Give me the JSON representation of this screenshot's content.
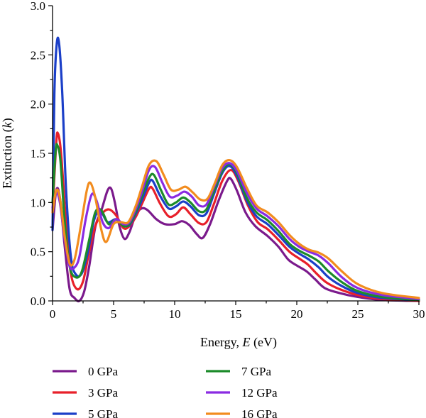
{
  "chart_data": {
    "type": "line",
    "xlabel_prefix": "Energy, ",
    "xlabel_var": "E",
    "xlabel_suffix": " (eV)",
    "ylabel_prefix": "Extinction (",
    "ylabel_var": "k",
    "ylabel_suffix": ")",
    "xlim": [
      0,
      30
    ],
    "ylim": [
      0,
      3.0
    ],
    "xticks": [
      0,
      5,
      10,
      15,
      20,
      25,
      30
    ],
    "xtick_labels": [
      "0",
      "5",
      "10",
      "15",
      "20",
      "25",
      "30"
    ],
    "yticks": [
      0,
      0.5,
      1.0,
      1.5,
      2.0,
      2.5,
      3.0
    ],
    "ytick_labels": [
      "0.0",
      "0.5",
      "1.0",
      "1.5",
      "2.0",
      "2.5",
      "3.0"
    ],
    "grid": false,
    "legend_position": "bottom",
    "series": [
      {
        "name": "0 GPa",
        "color": "#7B1A8C",
        "points": [
          [
            0,
            0.72
          ],
          [
            0.3,
            1.12
          ],
          [
            0.6,
            1.05
          ],
          [
            1.0,
            0.55
          ],
          [
            1.4,
            0.12
          ],
          [
            1.8,
            0.03
          ],
          [
            2.2,
            0.0
          ],
          [
            2.6,
            0.1
          ],
          [
            3.0,
            0.35
          ],
          [
            3.5,
            0.75
          ],
          [
            4.0,
            0.92
          ],
          [
            4.5,
            1.12
          ],
          [
            4.8,
            1.14
          ],
          [
            5.1,
            1.0
          ],
          [
            5.5,
            0.75
          ],
          [
            5.9,
            0.63
          ],
          [
            6.3,
            0.7
          ],
          [
            6.8,
            0.87
          ],
          [
            7.3,
            0.94
          ],
          [
            7.8,
            0.92
          ],
          [
            8.5,
            0.83
          ],
          [
            9.2,
            0.78
          ],
          [
            10.0,
            0.78
          ],
          [
            10.6,
            0.81
          ],
          [
            11.2,
            0.77
          ],
          [
            11.8,
            0.68
          ],
          [
            12.3,
            0.64
          ],
          [
            12.9,
            0.78
          ],
          [
            13.6,
            1.02
          ],
          [
            14.3,
            1.22
          ],
          [
            14.6,
            1.24
          ],
          [
            15.1,
            1.12
          ],
          [
            15.8,
            0.9
          ],
          [
            16.6,
            0.76
          ],
          [
            17.6,
            0.66
          ],
          [
            18.5,
            0.55
          ],
          [
            19.3,
            0.42
          ],
          [
            20.0,
            0.36
          ],
          [
            20.8,
            0.3
          ],
          [
            21.5,
            0.22
          ],
          [
            22.3,
            0.13
          ],
          [
            23.5,
            0.08
          ],
          [
            25.0,
            0.04
          ],
          [
            27.0,
            0.01
          ],
          [
            30.0,
            0.0
          ]
        ]
      },
      {
        "name": "3 GPa",
        "color": "#E8202A",
        "points": [
          [
            0,
            0.9
          ],
          [
            0.3,
            1.6
          ],
          [
            0.45,
            1.7
          ],
          [
            0.7,
            1.5
          ],
          [
            1.1,
            0.8
          ],
          [
            1.5,
            0.28
          ],
          [
            2.0,
            0.12
          ],
          [
            2.5,
            0.2
          ],
          [
            3.0,
            0.5
          ],
          [
            3.5,
            0.76
          ],
          [
            4.0,
            0.88
          ],
          [
            4.6,
            0.93
          ],
          [
            5.2,
            0.87
          ],
          [
            5.8,
            0.74
          ],
          [
            6.3,
            0.76
          ],
          [
            6.8,
            0.85
          ],
          [
            7.3,
            0.98
          ],
          [
            7.9,
            1.14
          ],
          [
            8.2,
            1.14
          ],
          [
            8.8,
            0.99
          ],
          [
            9.5,
            0.86
          ],
          [
            10.1,
            0.88
          ],
          [
            10.7,
            0.95
          ],
          [
            11.3,
            0.88
          ],
          [
            12.0,
            0.79
          ],
          [
            12.6,
            0.8
          ],
          [
            13.2,
            0.98
          ],
          [
            13.9,
            1.22
          ],
          [
            14.6,
            1.33
          ],
          [
            15.2,
            1.22
          ],
          [
            16.0,
            0.97
          ],
          [
            16.8,
            0.8
          ],
          [
            17.6,
            0.73
          ],
          [
            18.5,
            0.62
          ],
          [
            19.4,
            0.5
          ],
          [
            20.2,
            0.43
          ],
          [
            20.9,
            0.37
          ],
          [
            21.6,
            0.28
          ],
          [
            22.4,
            0.19
          ],
          [
            23.5,
            0.12
          ],
          [
            25.0,
            0.06
          ],
          [
            27.0,
            0.02
          ],
          [
            30.0,
            0.0
          ]
        ]
      },
      {
        "name": "5 GPa",
        "color": "#1B3FC8",
        "points": [
          [
            0,
            0.72
          ],
          [
            0.15,
            2.1
          ],
          [
            0.35,
            2.62
          ],
          [
            0.55,
            2.6
          ],
          [
            0.8,
            2.1
          ],
          [
            1.1,
            1.15
          ],
          [
            1.5,
            0.45
          ],
          [
            1.9,
            0.27
          ],
          [
            2.4,
            0.28
          ],
          [
            2.9,
            0.5
          ],
          [
            3.4,
            0.82
          ],
          [
            3.9,
            0.92
          ],
          [
            4.5,
            0.8
          ],
          [
            5.2,
            0.83
          ],
          [
            5.8,
            0.77
          ],
          [
            6.3,
            0.77
          ],
          [
            6.8,
            0.88
          ],
          [
            7.3,
            1.02
          ],
          [
            7.9,
            1.2
          ],
          [
            8.2,
            1.22
          ],
          [
            8.8,
            1.07
          ],
          [
            9.5,
            0.94
          ],
          [
            10.1,
            0.96
          ],
          [
            10.7,
            1.01
          ],
          [
            11.3,
            0.96
          ],
          [
            12.0,
            0.87
          ],
          [
            12.6,
            0.89
          ],
          [
            13.2,
            1.08
          ],
          [
            13.9,
            1.3
          ],
          [
            14.5,
            1.37
          ],
          [
            15.1,
            1.27
          ],
          [
            15.9,
            1.02
          ],
          [
            16.7,
            0.86
          ],
          [
            17.6,
            0.78
          ],
          [
            18.5,
            0.67
          ],
          [
            19.4,
            0.55
          ],
          [
            20.2,
            0.48
          ],
          [
            21.0,
            0.42
          ],
          [
            21.8,
            0.34
          ],
          [
            22.6,
            0.24
          ],
          [
            23.7,
            0.15
          ],
          [
            25.0,
            0.08
          ],
          [
            27.0,
            0.03
          ],
          [
            30.0,
            0.01
          ]
        ]
      },
      {
        "name": "7 GPa",
        "color": "#1C8B2A",
        "points": [
          [
            0,
            1.0
          ],
          [
            0.25,
            1.52
          ],
          [
            0.4,
            1.58
          ],
          [
            0.65,
            1.42
          ],
          [
            1.0,
            0.8
          ],
          [
            1.4,
            0.35
          ],
          [
            1.9,
            0.24
          ],
          [
            2.4,
            0.3
          ],
          [
            3.0,
            0.62
          ],
          [
            3.5,
            0.9
          ],
          [
            4.0,
            0.92
          ],
          [
            4.6,
            0.78
          ],
          [
            5.2,
            0.83
          ],
          [
            5.8,
            0.76
          ],
          [
            6.3,
            0.78
          ],
          [
            6.8,
            0.9
          ],
          [
            7.3,
            1.06
          ],
          [
            7.9,
            1.25
          ],
          [
            8.3,
            1.28
          ],
          [
            8.9,
            1.12
          ],
          [
            9.5,
            0.98
          ],
          [
            10.1,
            1.0
          ],
          [
            10.7,
            1.05
          ],
          [
            11.3,
            1.0
          ],
          [
            12.0,
            0.91
          ],
          [
            12.6,
            0.93
          ],
          [
            13.2,
            1.11
          ],
          [
            13.9,
            1.32
          ],
          [
            14.5,
            1.39
          ],
          [
            15.1,
            1.3
          ],
          [
            15.9,
            1.05
          ],
          [
            16.7,
            0.9
          ],
          [
            17.6,
            0.82
          ],
          [
            18.5,
            0.71
          ],
          [
            19.4,
            0.58
          ],
          [
            20.2,
            0.51
          ],
          [
            21.0,
            0.46
          ],
          [
            21.8,
            0.4
          ],
          [
            22.6,
            0.3
          ],
          [
            23.7,
            0.19
          ],
          [
            25.0,
            0.1
          ],
          [
            27.0,
            0.04
          ],
          [
            30.0,
            0.01
          ]
        ]
      },
      {
        "name": "12 GPa",
        "color": "#8A2BE2",
        "points": [
          [
            0,
            0.95
          ],
          [
            0.3,
            1.1
          ],
          [
            0.6,
            1.0
          ],
          [
            1.0,
            0.62
          ],
          [
            1.4,
            0.35
          ],
          [
            1.8,
            0.34
          ],
          [
            2.2,
            0.45
          ],
          [
            2.7,
            0.82
          ],
          [
            3.2,
            1.08
          ],
          [
            3.6,
            1.02
          ],
          [
            4.1,
            0.8
          ],
          [
            4.6,
            0.74
          ],
          [
            5.2,
            0.83
          ],
          [
            5.8,
            0.78
          ],
          [
            6.3,
            0.8
          ],
          [
            6.8,
            0.93
          ],
          [
            7.3,
            1.1
          ],
          [
            7.9,
            1.33
          ],
          [
            8.4,
            1.36
          ],
          [
            9.0,
            1.2
          ],
          [
            9.6,
            1.06
          ],
          [
            10.2,
            1.07
          ],
          [
            10.8,
            1.11
          ],
          [
            11.4,
            1.06
          ],
          [
            12.0,
            0.97
          ],
          [
            12.6,
            0.98
          ],
          [
            13.2,
            1.15
          ],
          [
            13.9,
            1.35
          ],
          [
            14.5,
            1.4
          ],
          [
            15.1,
            1.32
          ],
          [
            15.9,
            1.1
          ],
          [
            16.7,
            0.94
          ],
          [
            17.6,
            0.86
          ],
          [
            18.5,
            0.76
          ],
          [
            19.4,
            0.63
          ],
          [
            20.2,
            0.55
          ],
          [
            21.0,
            0.5
          ],
          [
            21.8,
            0.46
          ],
          [
            22.6,
            0.38
          ],
          [
            23.7,
            0.24
          ],
          [
            25.0,
            0.13
          ],
          [
            27.0,
            0.06
          ],
          [
            30.0,
            0.02
          ]
        ]
      },
      {
        "name": "16 GPa",
        "color": "#F28C1E",
        "points": [
          [
            0,
            0.9
          ],
          [
            0.3,
            1.12
          ],
          [
            0.6,
            1.05
          ],
          [
            1.0,
            0.65
          ],
          [
            1.4,
            0.38
          ],
          [
            1.8,
            0.42
          ],
          [
            2.3,
            0.75
          ],
          [
            2.8,
            1.12
          ],
          [
            3.1,
            1.2
          ],
          [
            3.5,
            1.05
          ],
          [
            4.0,
            0.72
          ],
          [
            4.4,
            0.6
          ],
          [
            5.0,
            0.78
          ],
          [
            5.6,
            0.8
          ],
          [
            6.2,
            0.8
          ],
          [
            6.8,
            0.96
          ],
          [
            7.3,
            1.15
          ],
          [
            7.9,
            1.38
          ],
          [
            8.5,
            1.42
          ],
          [
            9.1,
            1.28
          ],
          [
            9.7,
            1.13
          ],
          [
            10.3,
            1.13
          ],
          [
            10.9,
            1.16
          ],
          [
            11.5,
            1.1
          ],
          [
            12.1,
            1.03
          ],
          [
            12.7,
            1.04
          ],
          [
            13.3,
            1.2
          ],
          [
            13.9,
            1.38
          ],
          [
            14.5,
            1.43
          ],
          [
            15.1,
            1.36
          ],
          [
            15.9,
            1.15
          ],
          [
            16.7,
            0.97
          ],
          [
            17.6,
            0.9
          ],
          [
            18.5,
            0.8
          ],
          [
            19.4,
            0.67
          ],
          [
            20.2,
            0.58
          ],
          [
            21.0,
            0.52
          ],
          [
            21.8,
            0.49
          ],
          [
            22.6,
            0.43
          ],
          [
            23.7,
            0.3
          ],
          [
            25.0,
            0.17
          ],
          [
            27.0,
            0.08
          ],
          [
            30.0,
            0.03
          ]
        ]
      }
    ]
  }
}
